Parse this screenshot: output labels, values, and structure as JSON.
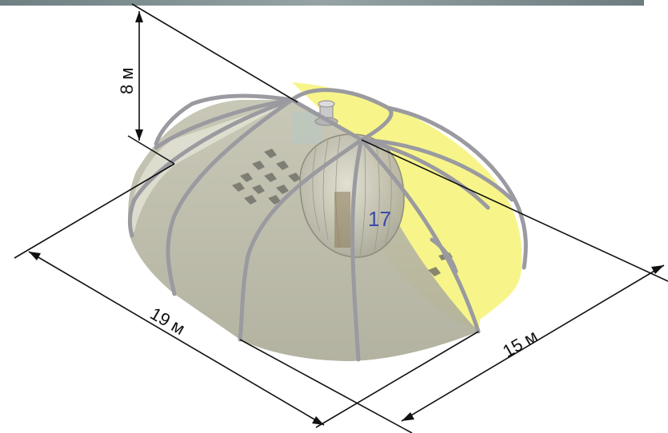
{
  "dimensions": {
    "height": "8 м",
    "length": "19 м",
    "width": "15 м"
  },
  "module_number": "17",
  "colors": {
    "membrane": "#f7f58a",
    "floor": "#b9b8a6",
    "ribs": "#9a9aa0",
    "top_strip": "#7c8a8c",
    "dimension_lines": "#111111",
    "module_label": "#3b4aa8"
  }
}
